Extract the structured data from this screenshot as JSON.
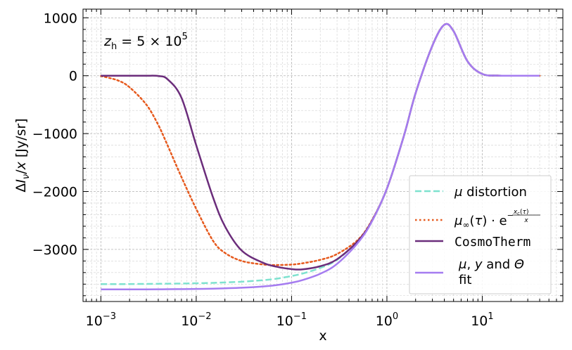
{
  "chart_data": {
    "type": "line",
    "xlabel": "x",
    "ylabel": "ΔIν/x [Jy/sr]",
    "xscale": "log",
    "xlim": [
      0.00065,
      70
    ],
    "ylim": [
      -3900,
      1150
    ],
    "grid": true,
    "legend_position": "lower-right",
    "annotation": "z_h = 5 × 10^5",
    "x_ticks": [
      {
        "value": 0.001,
        "base": "10",
        "exp": "−3"
      },
      {
        "value": 0.01,
        "base": "10",
        "exp": "−2"
      },
      {
        "value": 0.1,
        "base": "10",
        "exp": "−1"
      },
      {
        "value": 1,
        "base": "10",
        "exp": "0"
      },
      {
        "value": 10,
        "base": "10",
        "exp": "1"
      }
    ],
    "y_ticks": [
      {
        "value": 1000,
        "label": "1000"
      },
      {
        "value": 0,
        "label": "0"
      },
      {
        "value": -1000,
        "label": "−1000"
      },
      {
        "value": -2000,
        "label": "−2000"
      },
      {
        "value": -3000,
        "label": "−3000"
      }
    ],
    "x": [
      0.001,
      0.0015,
      0.002,
      0.003,
      0.004,
      0.005,
      0.007,
      0.01,
      0.015,
      0.02,
      0.03,
      0.05,
      0.07,
      0.1,
      0.13,
      0.2,
      0.3,
      0.5,
      0.7,
      1,
      1.5,
      2,
      3,
      4,
      5,
      7,
      10,
      15,
      20,
      40
    ],
    "series": [
      {
        "name": "μ distortion",
        "color": "#7ee2cf",
        "dash": "dashed",
        "values": [
          -3600,
          -3600,
          -3598,
          -3596,
          -3594,
          -3592,
          -3590,
          -3585,
          -3578,
          -3571,
          -3558,
          -3532,
          -3505,
          -3460,
          -3418,
          -3320,
          -3180,
          -2850,
          -2500,
          -1950,
          -1050,
          -300,
          520,
          880,
          770,
          250,
          30,
          2,
          0,
          0
        ]
      },
      {
        "name": "μ∞(τ)·e^(−x_c(τ)/x)",
        "color": "#e65a1e",
        "dash": "dotted",
        "values": [
          -5,
          -80,
          -200,
          -500,
          -850,
          -1200,
          -1750,
          -2300,
          -2850,
          -3060,
          -3200,
          -3260,
          -3270,
          -3262,
          -3240,
          -3180,
          -3080,
          -2830,
          -2490,
          -1950,
          -1050,
          -300,
          520,
          880,
          770,
          250,
          30,
          2,
          0,
          0
        ]
      },
      {
        "name": "CosmoTherm",
        "color": "#6b2d7b",
        "dash": "solid",
        "values": [
          0,
          0,
          0,
          0,
          -5,
          -60,
          -380,
          -1200,
          -2100,
          -2600,
          -3020,
          -3230,
          -3300,
          -3340,
          -3345,
          -3290,
          -3170,
          -2850,
          -2500,
          -1950,
          -1050,
          -300,
          520,
          880,
          770,
          250,
          30,
          2,
          0,
          0
        ]
      },
      {
        "name": "μ, y and Θ fit",
        "color": "#a57cf0",
        "dash": "solid",
        "values": [
          -3690,
          -3690,
          -3690,
          -3690,
          -3689,
          -3688,
          -3686,
          -3683,
          -3678,
          -3672,
          -3662,
          -3640,
          -3616,
          -3575,
          -3530,
          -3420,
          -3250,
          -2880,
          -2510,
          -1950,
          -1050,
          -300,
          520,
          880,
          770,
          250,
          30,
          2,
          0,
          0
        ]
      }
    ],
    "legend": [
      {
        "label": "μ distortion",
        "color": "#7ee2cf",
        "dash": "dashed"
      },
      {
        "label": "μ∞(τ)·e^(−x_c(τ)/x)",
        "color": "#e65a1e",
        "dash": "dotted"
      },
      {
        "label": "CosmoTherm",
        "color": "#6b2d7b",
        "dash": "solid",
        "mono": true
      },
      {
        "label": "μ, y and Θ fit",
        "color": "#a57cf0",
        "dash": "solid"
      }
    ]
  }
}
